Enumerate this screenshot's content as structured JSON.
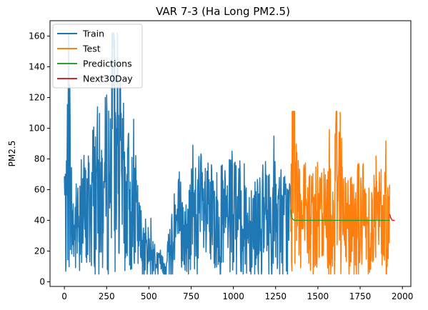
{
  "chart_data": {
    "type": "line",
    "title": "VAR 7-3 (Ha Long PM2.5)",
    "xlabel": "",
    "ylabel": "PM2.5",
    "xlim": [
      -85,
      2050
    ],
    "ylim": [
      -3,
      170
    ],
    "x_ticks": [
      0,
      250,
      500,
      750,
      1000,
      1250,
      1500,
      1750,
      2000
    ],
    "y_ticks": [
      0,
      20,
      40,
      60,
      80,
      100,
      120,
      140,
      160
    ],
    "grid": false,
    "legend_position": "top-left",
    "series": [
      {
        "name": "Train",
        "color": "#1f77b4",
        "x_range": [
          0,
          1340
        ],
        "anchors": [
          [
            0,
            58
          ],
          [
            10,
            30
          ],
          [
            25,
            110
          ],
          [
            40,
            45
          ],
          [
            60,
            30
          ],
          [
            80,
            40
          ],
          [
            100,
            50
          ],
          [
            130,
            40
          ],
          [
            160,
            55
          ],
          [
            190,
            60
          ],
          [
            220,
            55
          ],
          [
            250,
            65
          ],
          [
            275,
            70
          ],
          [
            285,
            162
          ],
          [
            300,
            75
          ],
          [
            330,
            70
          ],
          [
            360,
            55
          ],
          [
            390,
            50
          ],
          [
            420,
            45
          ],
          [
            440,
            30
          ],
          [
            470,
            22
          ],
          [
            500,
            20
          ],
          [
            530,
            15
          ],
          [
            560,
            12
          ],
          [
            590,
            10
          ],
          [
            620,
            20
          ],
          [
            650,
            35
          ],
          [
            680,
            40
          ],
          [
            700,
            30
          ],
          [
            730,
            28
          ],
          [
            750,
            40
          ],
          [
            800,
            45
          ],
          [
            850,
            40
          ],
          [
            900,
            38
          ],
          [
            950,
            40
          ],
          [
            1000,
            42
          ],
          [
            1050,
            40
          ],
          [
            1100,
            38
          ],
          [
            1150,
            40
          ],
          [
            1200,
            38
          ],
          [
            1250,
            42
          ],
          [
            1300,
            38
          ],
          [
            1340,
            40
          ]
        ],
        "min_value": 5,
        "max_value": 162
      },
      {
        "name": "Test",
        "color": "#ff7f0e",
        "x_range": [
          1340,
          1925
        ],
        "anchors": [
          [
            1340,
            38
          ],
          [
            1360,
            110
          ],
          [
            1400,
            40
          ],
          [
            1450,
            38
          ],
          [
            1500,
            40
          ],
          [
            1550,
            42
          ],
          [
            1600,
            40
          ],
          [
            1610,
            111
          ],
          [
            1650,
            38
          ],
          [
            1700,
            40
          ],
          [
            1750,
            42
          ],
          [
            1800,
            38
          ],
          [
            1850,
            40
          ],
          [
            1900,
            42
          ],
          [
            1925,
            38
          ]
        ],
        "min_value": 5,
        "max_value": 111
      },
      {
        "name": "Predictions",
        "color": "#2ca02c",
        "x": [
          1340,
          1342,
          1346,
          1350,
          1360,
          1400,
          1500,
          1600,
          1700,
          1800,
          1900,
          1925
        ],
        "values": [
          47,
          44,
          42,
          41,
          40,
          40,
          40,
          40,
          40,
          40,
          40,
          40
        ]
      },
      {
        "name": "Next30Day",
        "color": "#d62728",
        "x": [
          1925,
          1930,
          1935,
          1940,
          1945,
          1950,
          1955
        ],
        "values": [
          44,
          42,
          41,
          40,
          40,
          40,
          40
        ]
      }
    ]
  }
}
